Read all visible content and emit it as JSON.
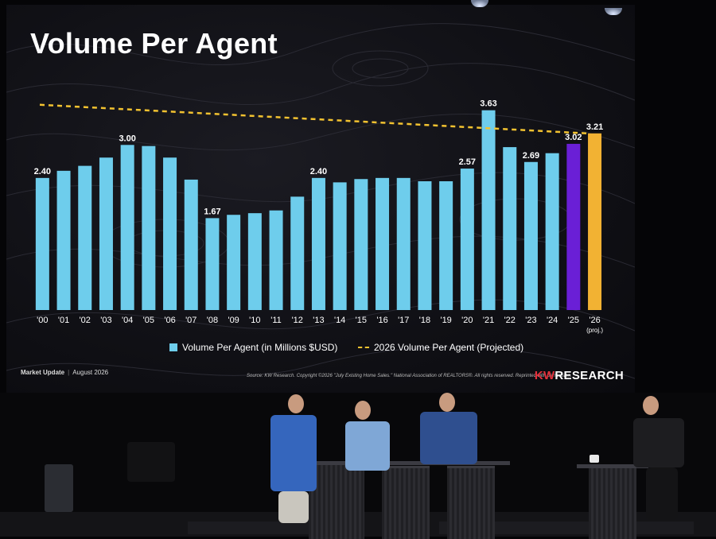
{
  "slide": {
    "title": "Volume Per Agent",
    "legend_bar": "Volume Per Agent (in Millions $USD)",
    "legend_line": "2026 Volume Per Agent (Projected)",
    "footer_left": "Market Update",
    "footer_date": "August 2026",
    "source": "Source: KW Research. Copyright ©2026 \"July Existing Home Sales.\" National Association of REALTORS®. All rights reserved. Reprinted with permission.",
    "brand_kw": "KW",
    "brand_rest": "RESEARCH"
  },
  "colors": {
    "bar": "#6ecdec",
    "bar_2025": "#6a1fd6",
    "bar_2026": "#f2b233",
    "projection_line": "#f2c230",
    "text": "#ffffff"
  },
  "chart_data": {
    "type": "bar",
    "categories": [
      "'00",
      "'01",
      "'02",
      "'03",
      "'04",
      "'05",
      "'06",
      "'07",
      "'08",
      "'09",
      "'10",
      "'11",
      "'12",
      "'13",
      "'14",
      "'15",
      "'16",
      "'17",
      "'18",
      "'19",
      "'20",
      "'21",
      "'22",
      "'23",
      "'24",
      "'25",
      "'26"
    ],
    "category_sublabels": {
      "'26": "(proj.)"
    },
    "values": [
      2.4,
      2.53,
      2.62,
      2.77,
      3.0,
      2.98,
      2.77,
      2.37,
      1.67,
      1.73,
      1.76,
      1.81,
      2.06,
      2.4,
      2.32,
      2.38,
      2.4,
      2.4,
      2.34,
      2.34,
      2.57,
      3.63,
      2.96,
      2.69,
      2.85,
      3.02,
      3.21
    ],
    "data_labels": {
      "'00": "2.40",
      "'04": "3.00",
      "'08": "1.67",
      "'13": "2.40",
      "'20": "2.57",
      "'21": "3.63",
      "'23": "2.69",
      "'25": "3.02",
      "'26": "3.21"
    },
    "reference_line": {
      "name": "2026 Volume Per Agent (Projected)",
      "value": 3.21,
      "style": "dashed"
    },
    "ylim": [
      0,
      3.9
    ],
    "grid": false,
    "legend_position": "bottom"
  }
}
